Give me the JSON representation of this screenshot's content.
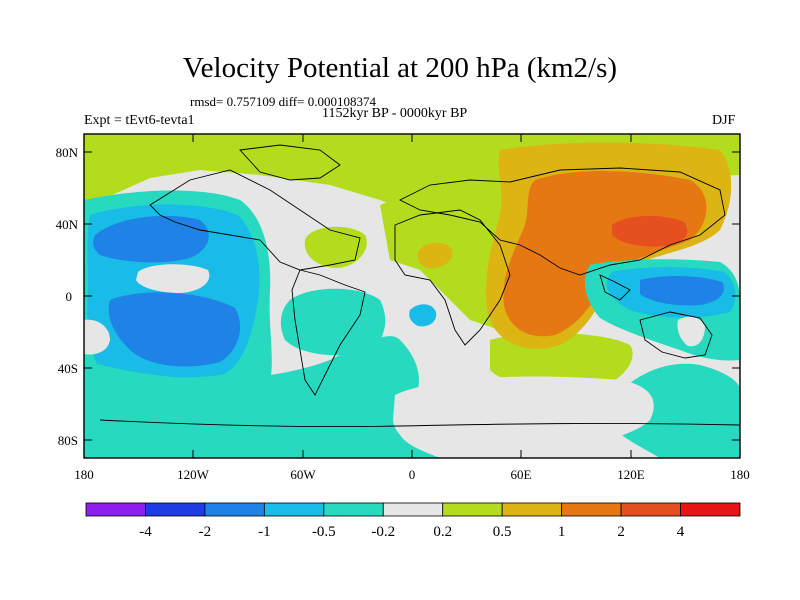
{
  "title": "Velocity Potential at 200 hPa (km2/s)",
  "stats_line": "rmsd= 0.757109 diff= 0.000108374",
  "period": "1152kyr BP - 0000kyr BP",
  "experiment": "Expt = tEvt6-tevta1",
  "season": "DJF",
  "y_axis": {
    "tick_labels": [
      "80N",
      "40N",
      "0",
      "40S",
      "80S"
    ],
    "values": [
      80,
      40,
      0,
      -40,
      -80
    ],
    "range": [
      -90,
      90
    ]
  },
  "x_axis": {
    "tick_labels": [
      "180",
      "120W",
      "60W",
      "0",
      "60E",
      "120E",
      "180"
    ],
    "values": [
      -180,
      -120,
      -60,
      0,
      60,
      120,
      180
    ],
    "range": [
      -180,
      180
    ]
  },
  "colorbar": {
    "labels": [
      "-4",
      "-2",
      "-1",
      "-0.5",
      "-0.2",
      "0.2",
      "0.5",
      "1",
      "2",
      "4"
    ],
    "colors": [
      "#8c1ef0",
      "#1e3ce6",
      "#1e82e6",
      "#18bce6",
      "#26d9bf",
      "#e6e6e6",
      "#b4dc1e",
      "#dcb414",
      "#e67814",
      "#e6501e",
      "#e61414"
    ]
  },
  "colors": {
    "neutral": "#e6e6e6",
    "neg_02_05": "#26d9bf",
    "neg_05_1": "#18bce6",
    "neg_1_2": "#1e82e6",
    "pos_02_05": "#b4dc1e",
    "pos_05_1": "#dcb414",
    "pos_1_2": "#e67814",
    "pos_2_4": "#e6501e"
  }
}
